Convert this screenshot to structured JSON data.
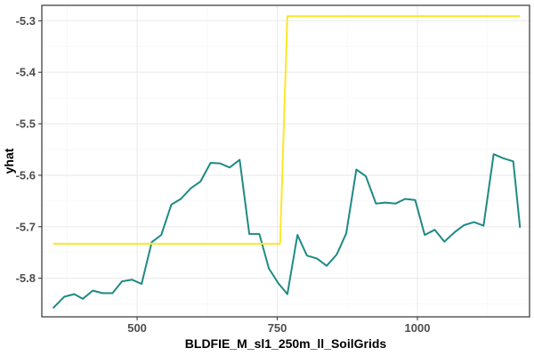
{
  "chart_data": {
    "type": "line",
    "title": "",
    "xlabel": "BLDFIE_M_sl1_250m_ll_SoilGrids",
    "ylabel": "yhat",
    "xlim": [
      330,
      1200
    ],
    "ylim": [
      -5.875,
      -5.27
    ],
    "x_ticks": [
      {
        "value": 500,
        "label": "500"
      },
      {
        "value": 750,
        "label": "750"
      },
      {
        "value": 1000,
        "label": "1000"
      }
    ],
    "y_ticks": [
      {
        "value": -5.3,
        "label": "-5.3"
      },
      {
        "value": -5.4,
        "label": "-5.4"
      },
      {
        "value": -5.5,
        "label": "-5.5"
      },
      {
        "value": -5.6,
        "label": "-5.6"
      },
      {
        "value": -5.7,
        "label": "-5.7"
      },
      {
        "value": -5.8,
        "label": "-5.8"
      }
    ],
    "x_minor_ticks": [
      375,
      625,
      875,
      1125
    ],
    "y_minor_ticks": [
      -5.85,
      -5.75,
      -5.65,
      -5.55,
      -5.45,
      -5.35
    ],
    "grid": true,
    "legend": "none",
    "series": [
      {
        "color": "#1f8a84",
        "x": [
          350,
          370,
          388,
          403,
          421,
          438,
          456,
          473,
          491,
          508,
          526,
          543,
          561,
          578,
          596,
          613,
          631,
          648,
          665,
          683,
          700,
          718,
          735,
          752,
          768,
          786,
          803,
          821,
          838,
          856,
          873,
          891,
          908,
          926,
          943,
          961,
          978,
          996,
          1013,
          1031,
          1048,
          1066,
          1083,
          1101,
          1118,
          1136,
          1153,
          1171,
          1183
        ],
        "y": [
          -5.858,
          -5.836,
          -5.831,
          -5.84,
          -5.824,
          -5.829,
          -5.829,
          -5.806,
          -5.803,
          -5.811,
          -5.73,
          -5.716,
          -5.657,
          -5.646,
          -5.625,
          -5.612,
          -5.576,
          -5.577,
          -5.585,
          -5.57,
          -5.714,
          -5.714,
          -5.781,
          -5.81,
          -5.831,
          -5.716,
          -5.756,
          -5.762,
          -5.776,
          -5.754,
          -5.713,
          -5.589,
          -5.602,
          -5.655,
          -5.653,
          -5.655,
          -5.646,
          -5.648,
          -5.716,
          -5.706,
          -5.729,
          -5.711,
          -5.697,
          -5.691,
          -5.698,
          -5.559,
          -5.567,
          -5.573,
          -5.702
        ]
      },
      {
        "color": "#fde725",
        "x": [
          350,
          755,
          768,
          1183
        ],
        "y": [
          -5.733,
          -5.733,
          -5.291,
          -5.291
        ]
      }
    ],
    "colors": {
      "background": "#ffffff",
      "panel_border": "#333333",
      "grid_major": "#ebebeb",
      "grid_minor": "#f5f5f5",
      "tick_text": "#4d4d4d",
      "axis_title": "#000000"
    }
  }
}
